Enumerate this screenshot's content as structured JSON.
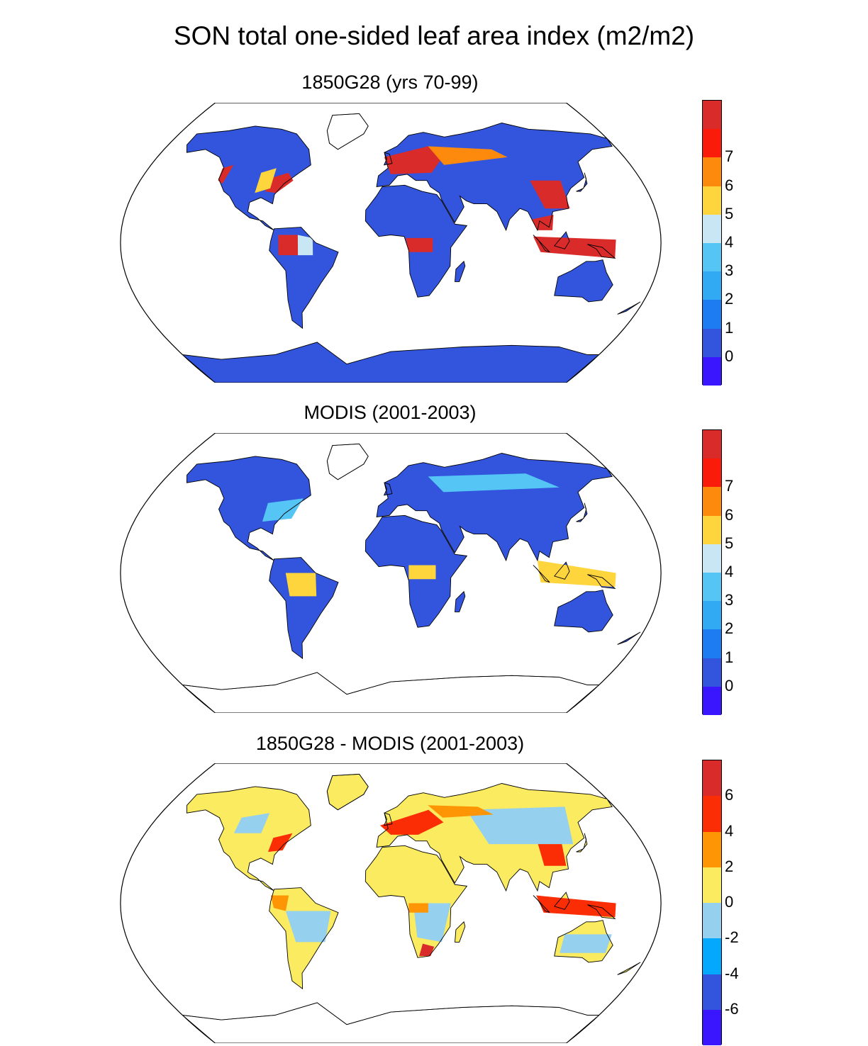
{
  "title": "SON total one-sided leaf area index (m2/m2)",
  "panels": [
    {
      "id": "model",
      "title": "1850G28 (yrs 70-99)",
      "colorbar": {
        "colors": [
          "#3a16ff",
          "#3355dd",
          "#1e7cf2",
          "#32aaf3",
          "#54c5f5",
          "#c9e6f5",
          "#fed53c",
          "#fd8a0d",
          "#fa1b0a",
          "#d92b2a"
        ],
        "tick_labels": [
          "0",
          "1",
          "2",
          "3",
          "4",
          "5",
          "6",
          "7"
        ]
      }
    },
    {
      "id": "obs",
      "title": "MODIS (2001-2003)",
      "colorbar": {
        "colors": [
          "#3a16ff",
          "#3355dd",
          "#1e7cf2",
          "#32aaf3",
          "#54c5f5",
          "#c9e6f5",
          "#fed53c",
          "#fd8a0d",
          "#fa1b0a",
          "#d92b2a"
        ],
        "tick_labels": [
          "0",
          "1",
          "2",
          "3",
          "4",
          "5",
          "6",
          "7"
        ]
      }
    },
    {
      "id": "diff",
      "title": "1850G28 - MODIS (2001-2003)",
      "colorbar": {
        "colors": [
          "#3a16ff",
          "#3355dd",
          "#04a8fc",
          "#95d0ee",
          "#fbeb60",
          "#fd9505",
          "#fb2d05",
          "#d92b2a"
        ],
        "tick_labels": [
          "6",
          "4",
          "2",
          "0",
          "-2",
          "-4",
          "-6"
        ]
      }
    }
  ]
}
